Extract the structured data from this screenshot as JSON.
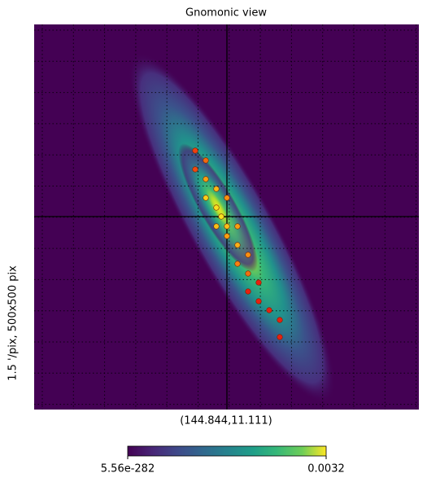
{
  "chart_data": {
    "type": "heatmap",
    "title": "Gnomonic view",
    "side_label": "1.5 '/pix,   500x500 pix",
    "center_label": "(144.844,11.111)",
    "colormap": "viridis",
    "clim": [
      5.56e-282,
      0.0032
    ],
    "cticks": [
      5.56e-282,
      0.0032
    ],
    "grid": true
  }
}
